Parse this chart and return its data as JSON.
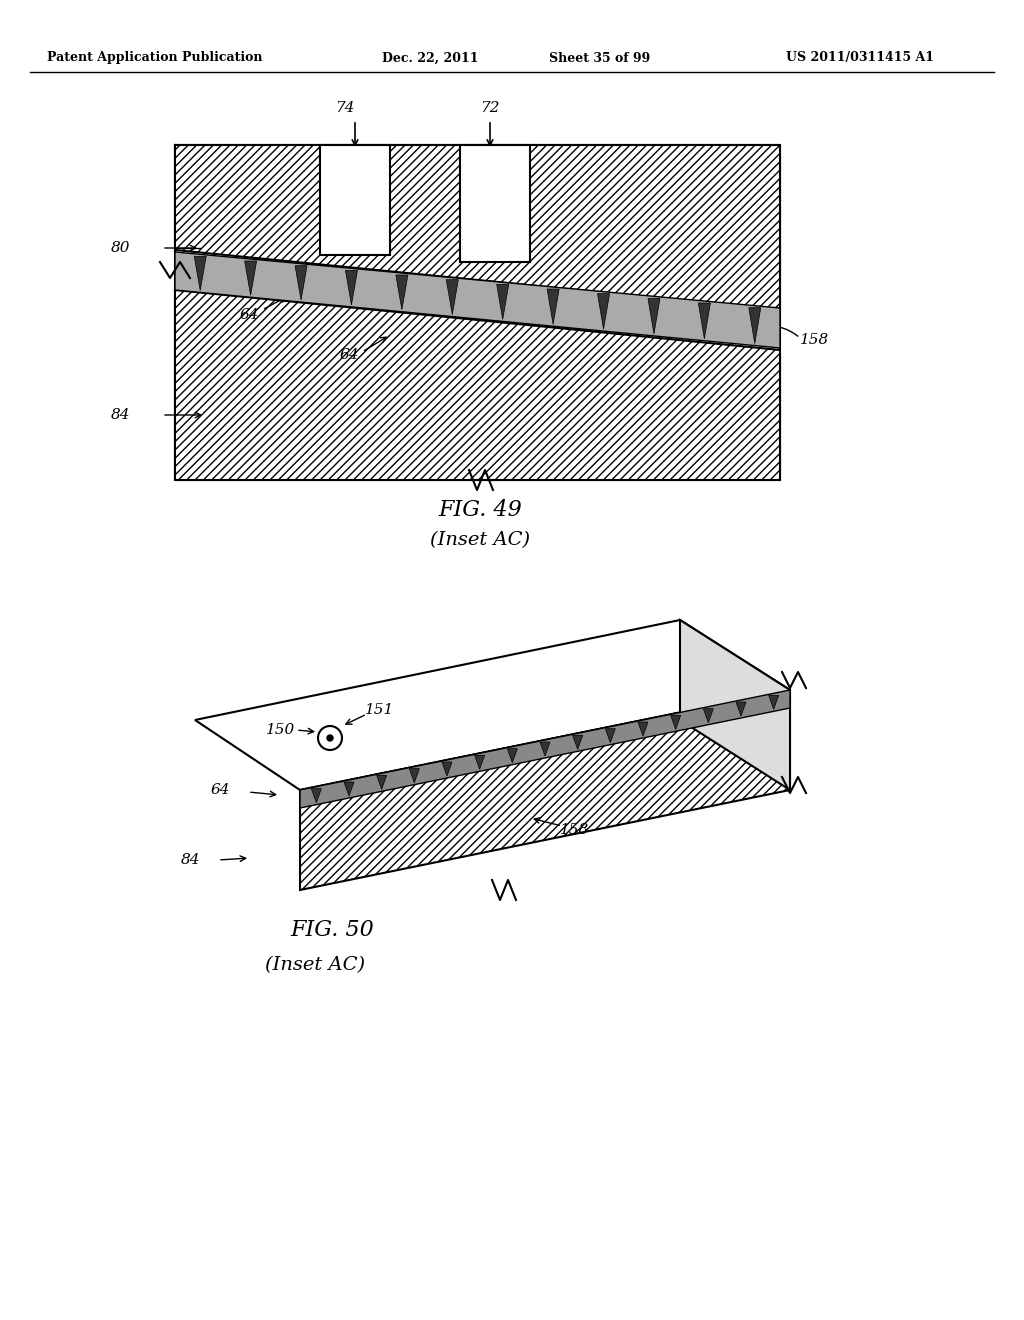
{
  "bg_color": "#ffffff",
  "header_text": "Patent Application Publication",
  "header_date": "Dec. 22, 2011",
  "header_sheet": "Sheet 35 of 99",
  "header_patent": "US 2011/0311415 A1",
  "fig49_title": "FIG. 49",
  "fig49_subtitle": "(Inset AC)",
  "fig50_title": "FIG. 50",
  "fig50_subtitle": "(Inset AC)",
  "line_color": "#000000",
  "hatch_color": "#555555",
  "dark_gray": "#444444",
  "light_gray": "#cccccc"
}
